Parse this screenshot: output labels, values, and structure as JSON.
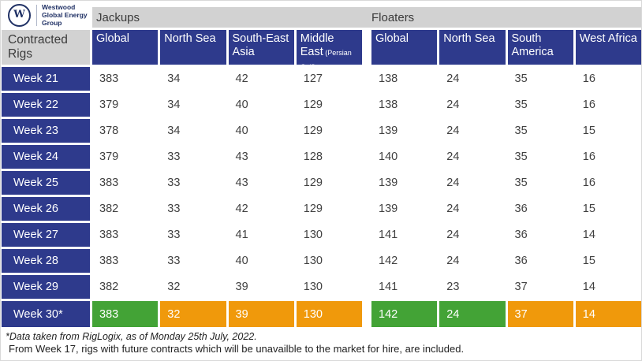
{
  "brand": {
    "logo_monogram": "W",
    "name_lines": [
      "Westwood",
      "Global Energy",
      "Group"
    ]
  },
  "table": {
    "corner_label": "Contracted Rigs",
    "groups": [
      {
        "label": "Jackups"
      },
      {
        "label": "Floaters"
      }
    ],
    "columns": [
      {
        "group": "Jackups",
        "label": "Global",
        "sub": ""
      },
      {
        "group": "Jackups",
        "label": "North Sea",
        "sub": ""
      },
      {
        "group": "Jackups",
        "label": "South-East Asia",
        "sub": ""
      },
      {
        "group": "Jackups",
        "label": "Middle East",
        "sub": "(Persian Gulf)"
      },
      {
        "group": "Floaters",
        "label": "Global",
        "sub": ""
      },
      {
        "group": "Floaters",
        "label": "North Sea",
        "sub": ""
      },
      {
        "group": "Floaters",
        "label": "South America",
        "sub": ""
      },
      {
        "group": "Floaters",
        "label": "West Africa",
        "sub": ""
      }
    ],
    "rows": [
      {
        "label": "Week 21",
        "values": [
          383,
          34,
          42,
          127,
          138,
          24,
          35,
          16
        ]
      },
      {
        "label": "Week 22",
        "values": [
          379,
          34,
          40,
          129,
          138,
          24,
          35,
          16
        ]
      },
      {
        "label": "Week 23",
        "values": [
          378,
          34,
          40,
          129,
          139,
          24,
          35,
          15
        ]
      },
      {
        "label": "Week 24",
        "values": [
          379,
          33,
          43,
          128,
          140,
          24,
          35,
          16
        ]
      },
      {
        "label": "Week 25",
        "values": [
          383,
          33,
          43,
          129,
          139,
          24,
          35,
          16
        ]
      },
      {
        "label": "Week 26",
        "values": [
          382,
          33,
          42,
          129,
          139,
          24,
          36,
          15
        ]
      },
      {
        "label": "Week 27",
        "values": [
          383,
          33,
          41,
          130,
          141,
          24,
          36,
          14
        ]
      },
      {
        "label": "Week 28",
        "values": [
          383,
          33,
          40,
          130,
          142,
          24,
          36,
          15
        ]
      },
      {
        "label": "Week 29",
        "values": [
          382,
          32,
          39,
          130,
          141,
          23,
          37,
          14
        ]
      },
      {
        "label": "Week 30*",
        "values": [
          383,
          32,
          39,
          130,
          142,
          24,
          37,
          14
        ],
        "highlight": [
          "green",
          "orange",
          "orange",
          "orange",
          "green",
          "green",
          "orange",
          "orange"
        ]
      }
    ]
  },
  "footnotes": [
    "*Data taken from RigLogix, as of Monday 25th July, 2022.",
    "From Week 17, rigs with future contracts which will be unavailble to the market for hire, are included."
  ],
  "colors": {
    "navy": "#2e3a8c",
    "logo_navy": "#203165",
    "band_gray": "#d2d2d2",
    "highlight_green": "#43a336",
    "highlight_orange": "#f0990b"
  },
  "chart_data": {
    "type": "table",
    "title": "Contracted Rigs",
    "column_groups": [
      "Jackups",
      "Jackups",
      "Jackups",
      "Jackups",
      "Floaters",
      "Floaters",
      "Floaters",
      "Floaters"
    ],
    "columns": [
      "Global",
      "North Sea",
      "South-East Asia",
      "Middle East (Persian Gulf)",
      "Global",
      "North Sea",
      "South America",
      "West Africa"
    ],
    "row_labels": [
      "Week 21",
      "Week 22",
      "Week 23",
      "Week 24",
      "Week 25",
      "Week 26",
      "Week 27",
      "Week 28",
      "Week 29",
      "Week 30*"
    ],
    "values": [
      [
        383,
        34,
        42,
        127,
        138,
        24,
        35,
        16
      ],
      [
        379,
        34,
        40,
        129,
        138,
        24,
        35,
        16
      ],
      [
        378,
        34,
        40,
        129,
        139,
        24,
        35,
        15
      ],
      [
        379,
        33,
        43,
        128,
        140,
        24,
        35,
        16
      ],
      [
        383,
        33,
        43,
        129,
        139,
        24,
        35,
        16
      ],
      [
        382,
        33,
        42,
        129,
        139,
        24,
        36,
        15
      ],
      [
        383,
        33,
        41,
        130,
        141,
        24,
        36,
        14
      ],
      [
        383,
        33,
        40,
        130,
        142,
        24,
        36,
        15
      ],
      [
        382,
        32,
        39,
        130,
        141,
        23,
        37,
        14
      ],
      [
        383,
        32,
        39,
        130,
        142,
        24,
        37,
        14
      ]
    ],
    "highlighted_row": "Week 30*",
    "highlight_cell_colors": [
      "#43a336",
      "#f0990b",
      "#f0990b",
      "#f0990b",
      "#43a336",
      "#43a336",
      "#f0990b",
      "#f0990b"
    ],
    "notes": [
      "*Data taken from RigLogix, as of Monday 25th July, 2022.",
      "From Week 17, rigs with future contracts which will be unavailble to the market for hire, are included."
    ]
  }
}
